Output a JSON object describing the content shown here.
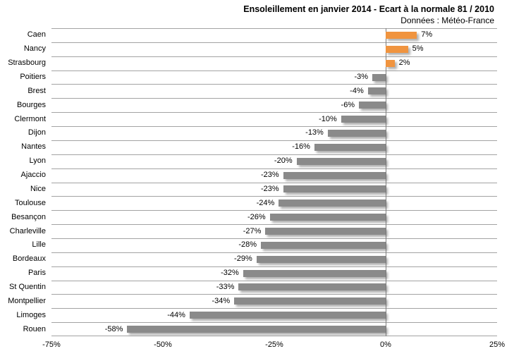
{
  "header": {
    "title": "Ensoleillement en janvier 2014 - Ecart à la normale 81 / 2010",
    "subtitle": "Données : Météo-France"
  },
  "chart_data": {
    "type": "bar",
    "orientation": "horizontal",
    "title": "Ensoleillement en janvier 2014 - Ecart à la normale 81 / 2010",
    "subtitle": "Données : Météo-France",
    "categories": [
      "Caen",
      "Nancy",
      "Strasbourg",
      "Poitiers",
      "Brest",
      "Bourges",
      "Clermont",
      "Dijon",
      "Nantes",
      "Lyon",
      "Ajaccio",
      "Nice",
      "Toulouse",
      "Besançon",
      "Charleville",
      "Lille",
      "Bordeaux",
      "Paris",
      "St Quentin",
      "Montpellier",
      "Limoges",
      "Rouen"
    ],
    "values": [
      7,
      5,
      2,
      -3,
      -4,
      -6,
      -10,
      -13,
      -16,
      -20,
      -23,
      -23,
      -24,
      -26,
      -27,
      -28,
      -29,
      -32,
      -33,
      -34,
      -44,
      -58
    ],
    "value_labels": [
      "7%",
      "5%",
      "2%",
      "-3%",
      "-4%",
      "-6%",
      "-10%",
      "-13%",
      "-16%",
      "-20%",
      "-23%",
      "-23%",
      "-24%",
      "-26%",
      "-27%",
      "-28%",
      "-29%",
      "-32%",
      "-33%",
      "-34%",
      "-44%",
      "-58%"
    ],
    "xlabel": "",
    "ylabel": "",
    "xlim": [
      -75,
      25
    ],
    "x_tick_values": [
      -75,
      -50,
      -25,
      0,
      25
    ],
    "x_tick_labels": [
      "-75%",
      "-50%",
      "-25%",
      "0%",
      "25%"
    ],
    "legend": "none",
    "grid": "category-row-separators",
    "colors": {
      "positive_bar": "#f0943f",
      "negative_bar": "#8a8a8a",
      "gridline": "#a3a3a3",
      "zero_axis": "#7f7f7f",
      "text": "#000000",
      "background": "#ffffff"
    }
  }
}
